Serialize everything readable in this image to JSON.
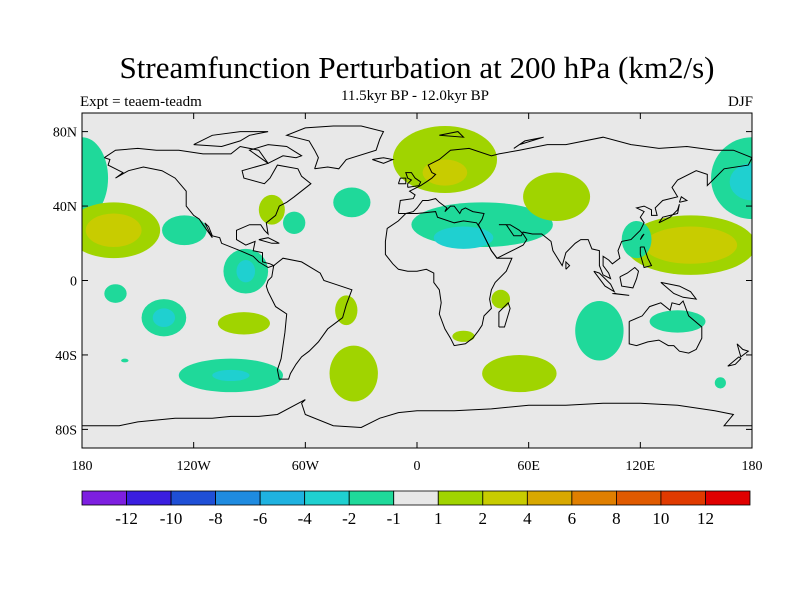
{
  "title": "Streamfunction Perturbation at 200 hPa (km2/s)",
  "left_label": "Expt = teaem-teadm",
  "center_label": "11.5kyr BP - 12.0kyr BP",
  "right_label": "DJF",
  "map": {
    "projection": "cylindrical-equidistant",
    "lon_range": [
      -180,
      180
    ],
    "lat_range": [
      -90,
      90
    ],
    "background_color": "#e8e8e8",
    "coastline_color": "#000000"
  },
  "axes": {
    "y_ticks": [
      {
        "lat": 80,
        "label": "80N"
      },
      {
        "lat": 40,
        "label": "40N"
      },
      {
        "lat": 0,
        "label": "0"
      },
      {
        "lat": -40,
        "label": "40S"
      },
      {
        "lat": -80,
        "label": "80S"
      }
    ],
    "x_ticks": [
      {
        "lon": -180,
        "label": "180"
      },
      {
        "lon": -120,
        "label": "120W"
      },
      {
        "lon": -60,
        "label": "60W"
      },
      {
        "lon": 0,
        "label": "0"
      },
      {
        "lon": 60,
        "label": "60E"
      },
      {
        "lon": 120,
        "label": "120E"
      },
      {
        "lon": 180,
        "label": "180"
      }
    ]
  },
  "colorbar": {
    "colors": [
      "#7d1fe0",
      "#3a1ee0",
      "#1f4fd6",
      "#1f8be0",
      "#1fb2e0",
      "#1fd0d0",
      "#1fd99a",
      "#e8e8e8",
      "#a0d400",
      "#c8cc00",
      "#d8a800",
      "#e07f00",
      "#e05a00",
      "#e03a00",
      "#e00000"
    ],
    "labels": [
      "-12",
      "-10",
      "-8",
      "-6",
      "-4",
      "-2",
      "-1",
      "1",
      "2",
      "4",
      "6",
      "8",
      "10",
      "12"
    ]
  },
  "regions": [
    {
      "lon": -180,
      "lat": 55,
      "rx": 14,
      "ry": 22,
      "level": -1
    },
    {
      "lon": 180,
      "lat": 55,
      "rx": 22,
      "ry": 22,
      "level": -1
    },
    {
      "lon": 180,
      "lat": 53,
      "rx": 12,
      "ry": 10,
      "level": -2
    },
    {
      "lon": -163,
      "lat": 27,
      "rx": 25,
      "ry": 15,
      "level": 2
    },
    {
      "lon": -163,
      "lat": 27,
      "rx": 15,
      "ry": 9,
      "level": 4
    },
    {
      "lon": -125,
      "lat": 27,
      "rx": 12,
      "ry": 8,
      "level": -1
    },
    {
      "lon": -92,
      "lat": 5,
      "rx": 12,
      "ry": 12,
      "level": -1
    },
    {
      "lon": -92,
      "lat": 5,
      "rx": 5,
      "ry": 6,
      "level": -2
    },
    {
      "lon": -78,
      "lat": 38,
      "rx": 7,
      "ry": 8,
      "level": 2
    },
    {
      "lon": -66,
      "lat": 31,
      "rx": 6,
      "ry": 6,
      "level": -1
    },
    {
      "lon": -35,
      "lat": 42,
      "rx": 10,
      "ry": 8,
      "level": -1
    },
    {
      "lon": -162,
      "lat": -7,
      "rx": 6,
      "ry": 5,
      "level": -1
    },
    {
      "lon": -136,
      "lat": -20,
      "rx": 12,
      "ry": 10,
      "level": -1
    },
    {
      "lon": -136,
      "lat": -20,
      "rx": 6,
      "ry": 5,
      "level": -2
    },
    {
      "lon": -93,
      "lat": -23,
      "rx": 14,
      "ry": 6,
      "level": 2
    },
    {
      "lon": -100,
      "lat": -51,
      "rx": 28,
      "ry": 9,
      "level": -1
    },
    {
      "lon": -100,
      "lat": -51,
      "rx": 10,
      "ry": 3,
      "level": -2
    },
    {
      "lon": -38,
      "lat": -16,
      "rx": 6,
      "ry": 8,
      "level": 2
    },
    {
      "lon": -34,
      "lat": -50,
      "rx": 13,
      "ry": 15,
      "level": 2
    },
    {
      "lon": 15,
      "lat": 65,
      "rx": 28,
      "ry": 18,
      "level": 2
    },
    {
      "lon": 15,
      "lat": 58,
      "rx": 12,
      "ry": 7,
      "level": 4
    },
    {
      "lon": 35,
      "lat": 30,
      "rx": 38,
      "ry": 12,
      "level": -1
    },
    {
      "lon": 25,
      "lat": 23,
      "rx": 16,
      "ry": 6,
      "level": -2
    },
    {
      "lon": 75,
      "lat": 45,
      "rx": 18,
      "ry": 13,
      "level": 2
    },
    {
      "lon": 45,
      "lat": -10,
      "rx": 5,
      "ry": 5,
      "level": 2
    },
    {
      "lon": 25,
      "lat": -30,
      "rx": 6,
      "ry": 3,
      "level": 2
    },
    {
      "lon": 55,
      "lat": -50,
      "rx": 20,
      "ry": 10,
      "level": 2
    },
    {
      "lon": 98,
      "lat": -27,
      "rx": 13,
      "ry": 16,
      "level": -1
    },
    {
      "lon": 147,
      "lat": 19,
      "rx": 35,
      "ry": 16,
      "level": 2
    },
    {
      "lon": 147,
      "lat": 19,
      "rx": 25,
      "ry": 10,
      "level": 4
    },
    {
      "lon": 118,
      "lat": 22,
      "rx": 8,
      "ry": 10,
      "level": -1
    },
    {
      "lon": 140,
      "lat": -22,
      "rx": 15,
      "ry": 6,
      "level": -1
    },
    {
      "lon": 163,
      "lat": -55,
      "rx": 3,
      "ry": 3,
      "level": -1
    },
    {
      "lon": -157,
      "lat": -43,
      "rx": 2,
      "ry": 1,
      "level": -1
    }
  ]
}
